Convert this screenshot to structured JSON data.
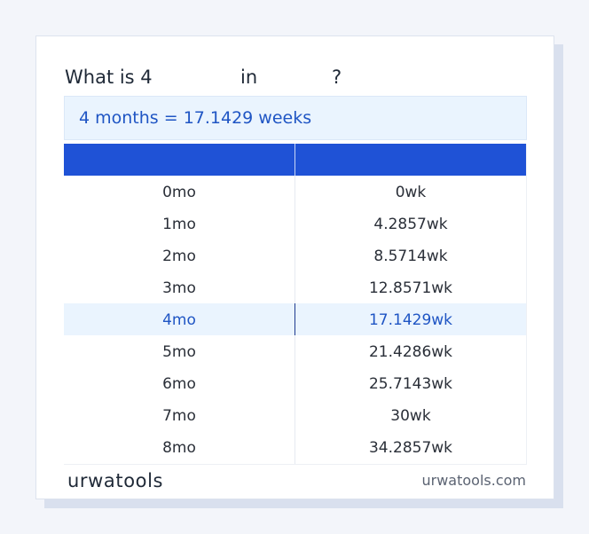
{
  "question": {
    "prefix": "What is 4",
    "from_unit": "",
    "in_word": "in",
    "to_unit": "",
    "suffix": "?"
  },
  "result": "4 months = 17.1429 weeks",
  "table": {
    "headers": [
      "",
      ""
    ],
    "rows": [
      [
        "0mo",
        "0wk"
      ],
      [
        "1mo",
        "4.2857wk"
      ],
      [
        "2mo",
        "8.5714wk"
      ],
      [
        "3mo",
        "12.8571wk"
      ],
      [
        "4mo",
        "17.1429wk"
      ],
      [
        "5mo",
        "21.4286wk"
      ],
      [
        "6mo",
        "25.7143wk"
      ],
      [
        "7mo",
        "30wk"
      ],
      [
        "8mo",
        "34.2857wk"
      ]
    ],
    "highlighted_row": 4
  },
  "footer": {
    "logo_text": "urwatools",
    "site": "urwatools.com"
  },
  "colors": {
    "header_blue": "#1f52d6",
    "highlight_bg": "#eaf4fe",
    "highlight_text": "#1f55c4"
  }
}
